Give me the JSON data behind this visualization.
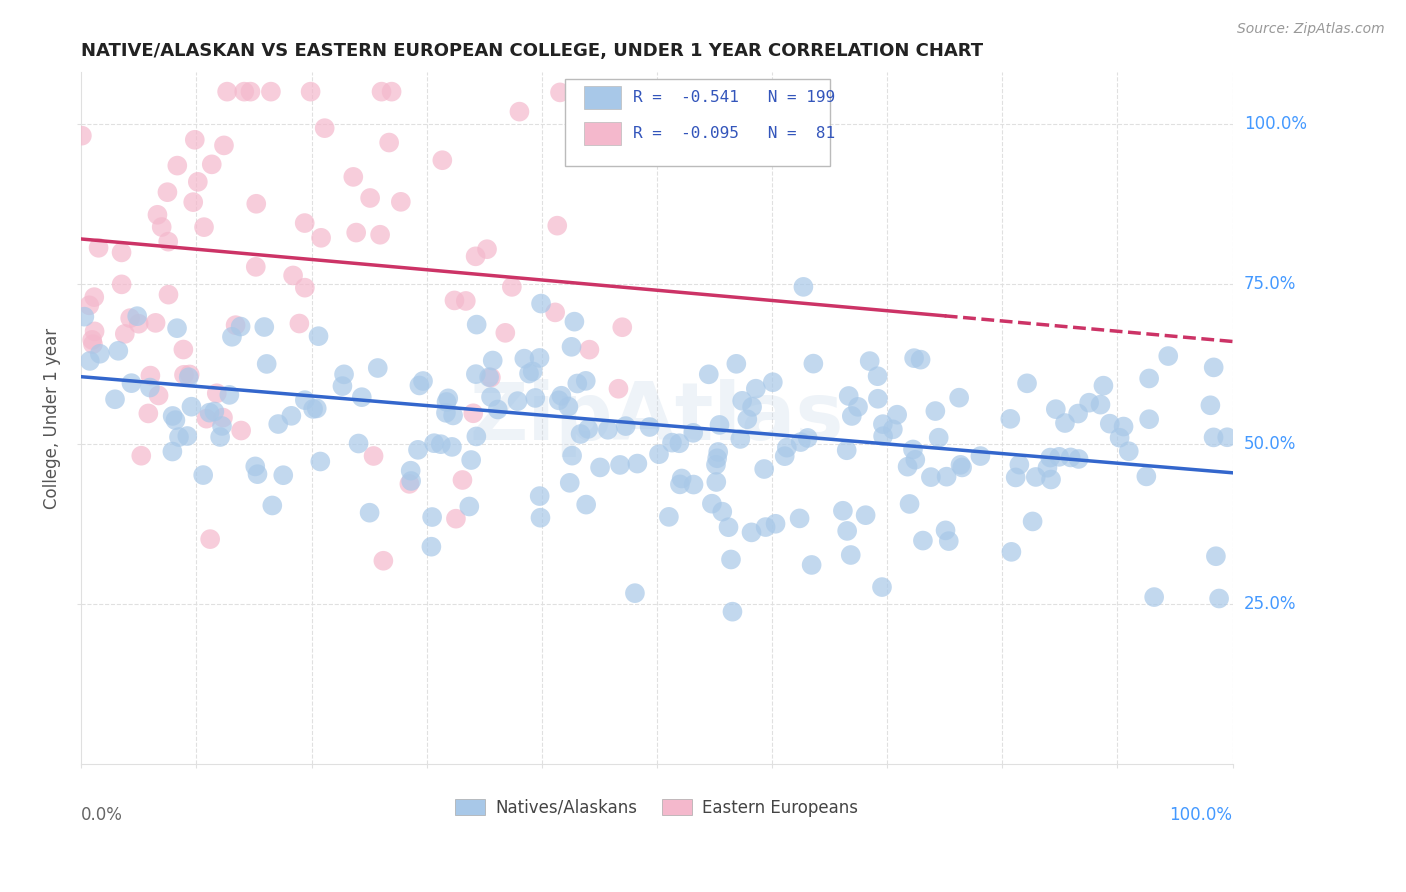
{
  "title": "NATIVE/ALASKAN VS EASTERN EUROPEAN COLLEGE, UNDER 1 YEAR CORRELATION CHART",
  "source": "Source: ZipAtlas.com",
  "ylabel": "College, Under 1 year",
  "ytick_labels": [
    "25.0%",
    "50.0%",
    "75.0%",
    "100.0%"
  ],
  "ytick_values": [
    0.25,
    0.5,
    0.75,
    1.0
  ],
  "xlim": [
    0.0,
    1.0
  ],
  "ylim": [
    0.0,
    1.08
  ],
  "blue_color": "#a8c8e8",
  "pink_color": "#f4b8cc",
  "blue_line_color": "#3366cc",
  "pink_line_color": "#cc3366",
  "legend_R_blue": "-0.541",
  "legend_N_blue": "199",
  "legend_R_pink": "-0.095",
  "legend_N_pink": " 81",
  "blue_line_start_y": 0.605,
  "blue_line_end_y": 0.455,
  "pink_line_start_y": 0.82,
  "pink_line_end_y": 0.66,
  "pink_line_solid_end_x": 0.75,
  "watermark": "ZipAtlas",
  "grid_color": "#e0e0e0",
  "background_color": "#ffffff",
  "seed_blue": 123,
  "seed_pink": 456,
  "n_blue": 199,
  "n_pink": 81
}
